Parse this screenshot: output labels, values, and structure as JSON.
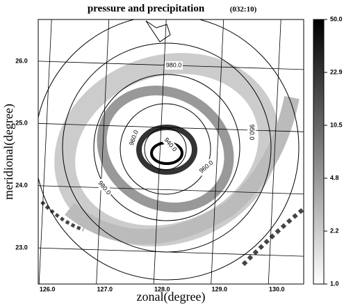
{
  "chart_data": {
    "type": "map",
    "title": "pressure and precipitation",
    "subtitle": "(032:10)",
    "x_label": "zonal(degree)",
    "y_label": "meridional(degree)",
    "xlim": [
      125.84,
      130.47
    ],
    "ylim": [
      22.42,
      26.67
    ],
    "xticks": [
      {
        "value": 126,
        "label": "126.0"
      },
      {
        "value": 127,
        "label": "127.0"
      },
      {
        "value": 128,
        "label": "128.0"
      },
      {
        "value": 129,
        "label": "129.0"
      },
      {
        "value": 130,
        "label": "130.0"
      }
    ],
    "yticks": [
      {
        "value": 23,
        "label": "23.0"
      },
      {
        "value": 24,
        "label": "24.0"
      },
      {
        "value": 25,
        "label": "25.0"
      },
      {
        "value": 26,
        "label": "26.0"
      }
    ],
    "colorbar_ticks": [
      "1.0",
      "2.2",
      "4.8",
      "10.5",
      "22.9",
      "50.0"
    ],
    "contour_labels": [
      "980.0",
      "960.0",
      "940.0",
      "960.0",
      "950.0",
      "980.0"
    ],
    "grid": true
  }
}
